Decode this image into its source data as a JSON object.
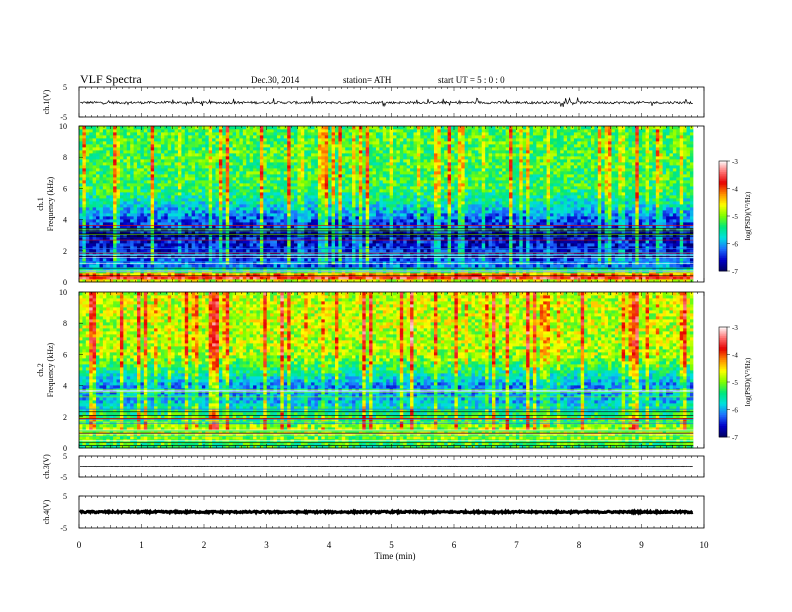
{
  "header": {
    "title": "VLF  Spectra",
    "date": "Dec.30, 2014",
    "station": "station= ATH",
    "start": "start  UT  =    5  : 0  : 0"
  },
  "colorbar": {
    "label": "log(PSD)(V²/Hz)",
    "ticks": [
      "-3",
      "-4",
      "-5",
      "-6",
      "-7"
    ],
    "colors": [
      "#ffffff",
      "#ff7070",
      "#e60000",
      "#ff8c00",
      "#ffff00",
      "#7fff00",
      "#00e87a",
      "#00e0e0",
      "#1e70ff",
      "#0000c8",
      "#000060"
    ]
  },
  "chart_data": [
    {
      "type": "line",
      "name": "ch1-waveform",
      "ylabel": "ch.1(V)",
      "ylim": [
        -5,
        5
      ],
      "yticks": [
        "5",
        "-5"
      ],
      "baseline": -0.2,
      "noise": 0.4
    },
    {
      "type": "heatmap",
      "name": "ch1-spectrogram",
      "ylabel_channel": "ch.1",
      "ylabel": "Frequency  (kHz)",
      "ylim": [
        0,
        10
      ],
      "yticks": [
        "0",
        "2",
        "4",
        "6",
        "8",
        "10"
      ],
      "xlim": [
        0,
        9.83
      ],
      "profile": [
        {
          "f": 0.0,
          "level": -5.2
        },
        {
          "f": 0.3,
          "level": -3.6
        },
        {
          "f": 0.6,
          "level": -4.6
        },
        {
          "f": 1.0,
          "level": -6.2
        },
        {
          "f": 2.0,
          "level": -6.5
        },
        {
          "f": 3.0,
          "level": -6.6
        },
        {
          "f": 4.0,
          "level": -6.3
        },
        {
          "f": 5.0,
          "level": -5.7
        },
        {
          "f": 6.0,
          "level": -5.3
        },
        {
          "f": 8.0,
          "level": -5.2
        },
        {
          "f": 10.0,
          "level": -5.2
        }
      ]
    },
    {
      "type": "heatmap",
      "name": "ch2-spectrogram",
      "ylabel_channel": "ch.2",
      "ylabel": "Frequency  (kHz)",
      "ylim": [
        0,
        10
      ],
      "yticks": [
        "0",
        "2",
        "4",
        "6",
        "8",
        "10"
      ],
      "xlim": [
        0,
        9.83
      ],
      "profile": [
        {
          "f": 0.0,
          "level": -5.4
        },
        {
          "f": 1.0,
          "level": -4.8
        },
        {
          "f": 2.0,
          "level": -5.3
        },
        {
          "f": 3.0,
          "level": -5.9
        },
        {
          "f": 4.0,
          "level": -6.1
        },
        {
          "f": 5.0,
          "level": -5.4
        },
        {
          "f": 6.0,
          "level": -4.9
        },
        {
          "f": 8.0,
          "level": -4.8
        },
        {
          "f": 10.0,
          "level": -4.8
        }
      ]
    },
    {
      "type": "line",
      "name": "ch3-waveform",
      "ylabel": "ch.3(V)",
      "ylim": [
        -5,
        5
      ],
      "yticks": [
        "5",
        "-5"
      ],
      "baseline": 0.0,
      "noise": 0.12
    },
    {
      "type": "line",
      "name": "ch4-waveform",
      "ylabel": "ch.4(V)",
      "ylim": [
        -5,
        5
      ],
      "yticks": [
        "5",
        "-5"
      ],
      "baseline": 0.0,
      "noise": 0.25
    }
  ],
  "xaxis": {
    "label": "Time  (min)",
    "xlim": [
      0,
      10
    ],
    "ticks": [
      "0",
      "1",
      "2",
      "3",
      "4",
      "5",
      "6",
      "7",
      "8",
      "9",
      "10"
    ]
  }
}
